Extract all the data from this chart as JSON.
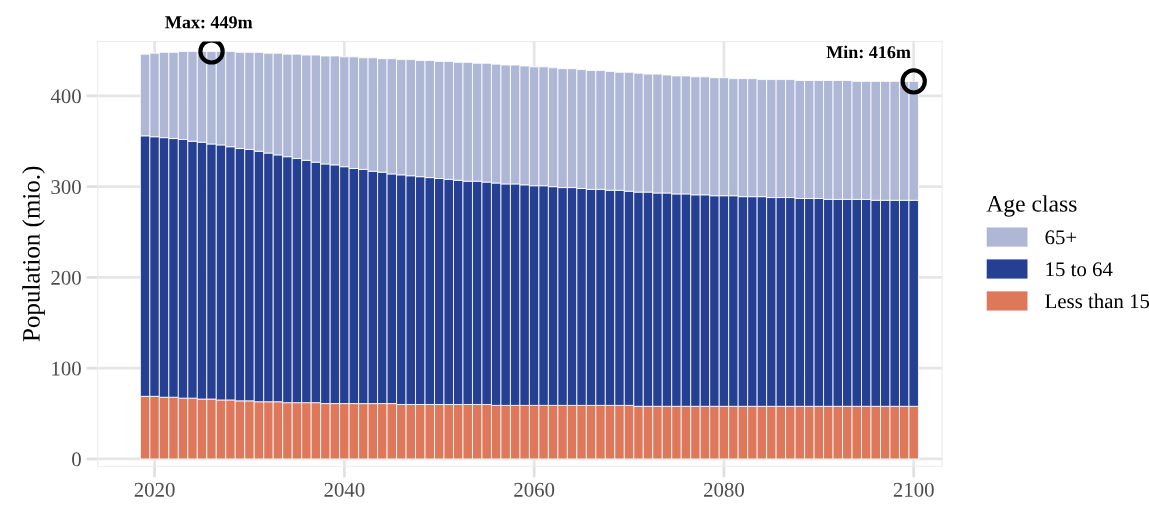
{
  "chart_data": {
    "type": "bar",
    "stacked": true,
    "ylabel": "Population (mio.)",
    "legend_title": "Age class",
    "legend": "right",
    "grid": true,
    "x": [
      2019,
      2020,
      2021,
      2022,
      2023,
      2024,
      2025,
      2026,
      2027,
      2028,
      2029,
      2030,
      2031,
      2032,
      2033,
      2034,
      2035,
      2036,
      2037,
      2038,
      2039,
      2040,
      2041,
      2042,
      2043,
      2044,
      2045,
      2046,
      2047,
      2048,
      2049,
      2050,
      2051,
      2052,
      2053,
      2054,
      2055,
      2056,
      2057,
      2058,
      2059,
      2060,
      2061,
      2062,
      2063,
      2064,
      2065,
      2066,
      2067,
      2068,
      2069,
      2070,
      2071,
      2072,
      2073,
      2074,
      2075,
      2076,
      2077,
      2078,
      2079,
      2080,
      2081,
      2082,
      2083,
      2084,
      2085,
      2086,
      2087,
      2088,
      2089,
      2090,
      2091,
      2092,
      2093,
      2094,
      2095,
      2096,
      2097,
      2098,
      2099,
      2100
    ],
    "series": [
      {
        "name": "Less than 15",
        "color": "#df775a",
        "values": [
          69,
          69,
          68,
          68,
          67,
          67,
          66,
          66,
          65,
          65,
          64,
          64,
          63,
          63,
          63,
          62,
          62,
          62,
          62,
          61,
          61,
          61,
          61,
          61,
          61,
          61,
          61,
          60,
          60,
          60,
          60,
          60,
          60,
          60,
          60,
          60,
          60,
          59,
          59,
          59,
          59,
          59,
          59,
          59,
          59,
          59,
          59,
          59,
          59,
          59,
          59,
          59,
          58,
          58,
          58,
          58,
          58,
          58,
          58,
          58,
          58,
          58,
          58,
          58,
          58,
          58,
          58,
          58,
          58,
          58,
          58,
          58,
          58,
          58,
          58,
          58,
          58,
          58,
          58,
          58,
          58,
          58
        ]
      },
      {
        "name": "15 to 64",
        "color": "#253f93",
        "values": [
          287,
          286,
          286,
          285,
          285,
          283,
          283,
          281,
          281,
          279,
          278,
          277,
          276,
          274,
          272,
          271,
          269,
          267,
          265,
          264,
          263,
          261,
          259,
          258,
          256,
          255,
          253,
          253,
          252,
          251,
          250,
          249,
          248,
          247,
          246,
          246,
          245,
          245,
          244,
          244,
          243,
          242,
          242,
          241,
          240,
          240,
          239,
          238,
          238,
          237,
          237,
          236,
          236,
          236,
          235,
          235,
          234,
          234,
          233,
          233,
          232,
          232,
          232,
          231,
          231,
          231,
          230,
          230,
          230,
          229,
          229,
          229,
          228,
          228,
          228,
          228,
          228,
          227,
          227,
          227,
          227,
          227
        ]
      },
      {
        "name": "65+",
        "color": "#aeb8d6",
        "values": [
          90,
          92,
          94,
          95,
          97,
          99,
          100,
          102,
          103,
          105,
          106,
          107,
          109,
          110,
          112,
          113,
          115,
          116,
          118,
          119,
          120,
          121,
          123,
          123,
          125,
          125,
          127,
          127,
          128,
          128,
          129,
          129,
          130,
          130,
          131,
          130,
          131,
          131,
          131,
          131,
          131,
          131,
          131,
          131,
          131,
          131,
          131,
          131,
          131,
          131,
          130,
          131,
          131,
          130,
          131,
          130,
          130,
          130,
          130,
          130,
          130,
          130,
          129,
          130,
          130,
          129,
          130,
          130,
          130,
          130,
          130,
          130,
          131,
          131,
          131,
          130,
          130,
          131,
          131,
          131,
          131,
          131
        ]
      }
    ],
    "xlim": [
      2014,
      2103
    ],
    "xticks": [
      2020,
      2040,
      2060,
      2080,
      2100
    ],
    "ylim": [
      -8,
      460
    ],
    "yticks": [
      0,
      100,
      200,
      300,
      400
    ],
    "annotations": [
      {
        "text": "Max: 449m",
        "x": 2026,
        "y": 449
      },
      {
        "text": "Min: 416m",
        "x": 2100,
        "y": 416
      }
    ]
  }
}
